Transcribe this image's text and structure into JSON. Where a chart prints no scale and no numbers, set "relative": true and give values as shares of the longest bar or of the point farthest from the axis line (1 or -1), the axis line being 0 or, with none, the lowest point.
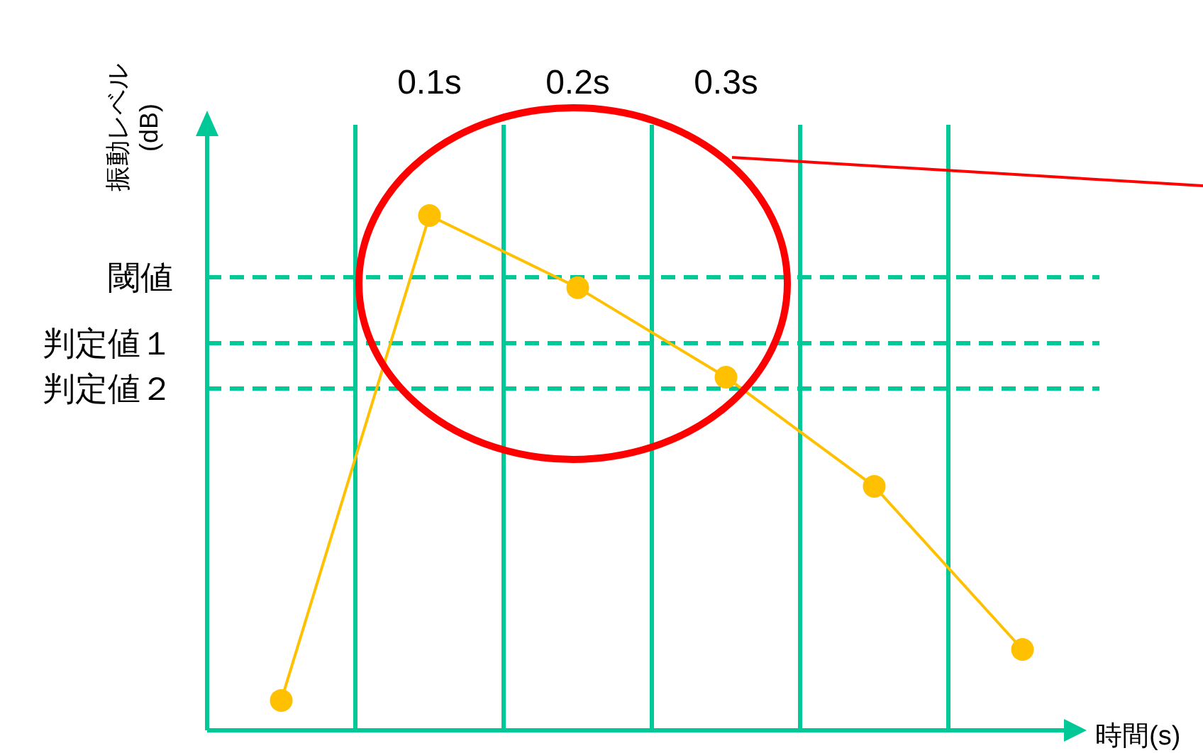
{
  "chart_data": {
    "type": "line",
    "relative": true,
    "xlabel": "時間(s)",
    "ylabel": "振動レベル\n(dB)",
    "categories": [
      null,
      "0.1s",
      "0.2s",
      "0.3s",
      null,
      null
    ],
    "series": [
      {
        "color": "#ffc000",
        "values": [
          0.058,
          1,
          0.86,
          0.686,
          0.474,
          0.157
        ]
      }
    ],
    "marker": "circle",
    "grid": "x",
    "ref_lines": [
      {
        "axis": "y",
        "value": 0.88,
        "label": "閾値",
        "color": "#00c896",
        "line_style": "dashed"
      },
      {
        "axis": "y",
        "value": 0.752,
        "label": "判定値１",
        "color": "#00c896",
        "line_style": "dashed"
      },
      {
        "axis": "y",
        "value": 0.664,
        "label": "判定値２",
        "color": "#00c896",
        "line_style": "dashed"
      }
    ]
  }
}
